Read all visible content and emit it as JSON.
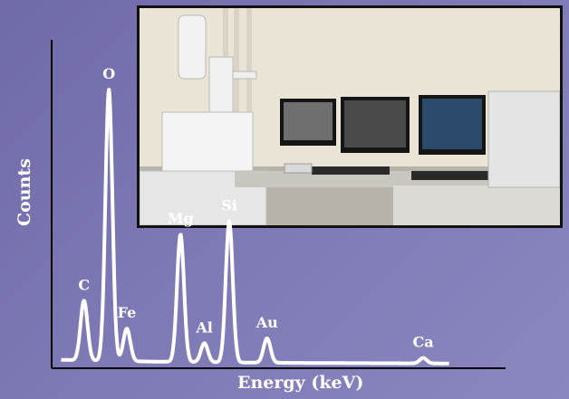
{
  "chart_data": {
    "type": "line",
    "title": "",
    "xlabel": "Energy (keV)",
    "ylabel": "Counts",
    "grid": false,
    "line_color": "#ffffff",
    "peaks": [
      {
        "label": "C",
        "x": 0.28,
        "y": 0.22
      },
      {
        "label": "O",
        "x": 0.53,
        "y": 1.0
      },
      {
        "label": "Fe",
        "x": 0.71,
        "y": 0.12
      },
      {
        "label": "Mg",
        "x": 1.25,
        "y": 0.47
      },
      {
        "label": "Al",
        "x": 1.49,
        "y": 0.07
      },
      {
        "label": "Si",
        "x": 1.74,
        "y": 0.52
      },
      {
        "label": "Au",
        "x": 2.12,
        "y": 0.09
      },
      {
        "label": "Ca",
        "x": 3.69,
        "y": 0.02
      }
    ],
    "xlim": [
      0,
      4.5
    ],
    "ylim": [
      0,
      1.05
    ]
  },
  "photo": {
    "subject": "scanning electron microscope with EDS workstation",
    "colors": {
      "wall": "#e9e4d6",
      "desk": "#c9c6bf",
      "monitor": "#151515",
      "printer": "#e4e4e4"
    }
  }
}
